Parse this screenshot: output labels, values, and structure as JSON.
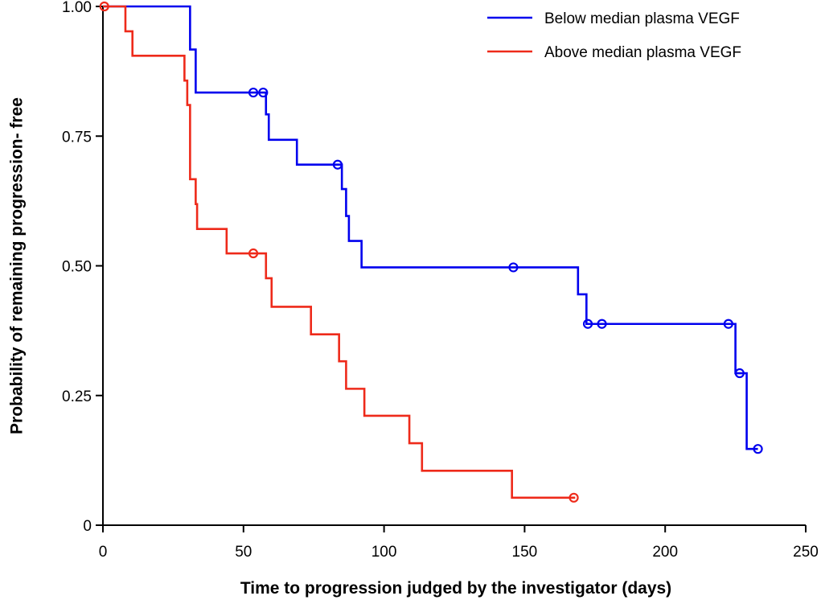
{
  "chart_data": {
    "type": "line",
    "subtype": "kaplan-meier step",
    "title": "",
    "xlabel": "Time to progression judged by the investigator (days)",
    "ylabel": "Probability of remaining progression- free",
    "xlim": [
      0,
      250
    ],
    "ylim": [
      0,
      1
    ],
    "x_ticks": [
      0,
      50,
      100,
      150,
      200,
      250
    ],
    "x_tick_labels": [
      "0",
      "50",
      "100",
      "150",
      "200",
      "250"
    ],
    "y_ticks": [
      0,
      0.25,
      0.5,
      0.75,
      1
    ],
    "y_tick_labels": [
      "0",
      "0.25",
      "0.50",
      "0.75",
      "1.00"
    ],
    "grid": false,
    "legend_position": "top-right",
    "series": [
      {
        "name": "Below median plasma VEGF",
        "color": "#0000ee",
        "steps": [
          [
            0,
            1.0
          ],
          [
            31,
            0.917
          ],
          [
            33,
            0.834
          ],
          [
            58,
            0.792
          ],
          [
            59,
            0.743
          ],
          [
            69,
            0.695
          ],
          [
            85,
            0.648
          ],
          [
            86.5,
            0.596
          ],
          [
            87.5,
            0.548
          ],
          [
            92,
            0.497
          ],
          [
            169,
            0.445
          ],
          [
            172,
            0.388
          ],
          [
            225,
            0.293
          ],
          [
            229,
            0.147
          ]
        ],
        "end_x": 233,
        "censored": [
          [
            53.5,
            0.834
          ],
          [
            57,
            0.834
          ],
          [
            83.5,
            0.695
          ],
          [
            146,
            0.497
          ],
          [
            172.5,
            0.388
          ],
          [
            177.5,
            0.388
          ],
          [
            222.5,
            0.388
          ],
          [
            226.5,
            0.293
          ],
          [
            233,
            0.147
          ]
        ]
      },
      {
        "name": "Above median plasma VEGF",
        "color": "#ee2a1a",
        "steps": [
          [
            0,
            1.0
          ],
          [
            8,
            0.952
          ],
          [
            10.5,
            0.905
          ],
          [
            29,
            0.857
          ],
          [
            30,
            0.81
          ],
          [
            31,
            0.667
          ],
          [
            33,
            0.619
          ],
          [
            33.5,
            0.571
          ],
          [
            44,
            0.524
          ],
          [
            58,
            0.476
          ],
          [
            60,
            0.421
          ],
          [
            74,
            0.368
          ],
          [
            84,
            0.316
          ],
          [
            86.5,
            0.263
          ],
          [
            93,
            0.211
          ],
          [
            109,
            0.158
          ],
          [
            113.5,
            0.105
          ],
          [
            145.5,
            0.053
          ]
        ],
        "end_x": 168,
        "censored": [
          [
            0.5,
            1.0
          ],
          [
            53.5,
            0.524
          ],
          [
            167.5,
            0.053
          ]
        ]
      }
    ]
  }
}
